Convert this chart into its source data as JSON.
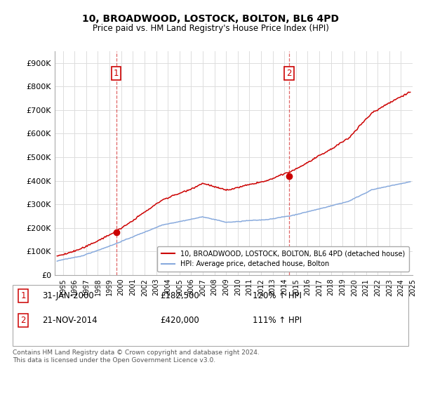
{
  "title": "10, BROADWOOD, LOSTOCK, BOLTON, BL6 4PD",
  "subtitle": "Price paid vs. HM Land Registry's House Price Index (HPI)",
  "ylabel_ticks": [
    "£0",
    "£100K",
    "£200K",
    "£300K",
    "£400K",
    "£500K",
    "£600K",
    "£700K",
    "£800K",
    "£900K"
  ],
  "ytick_values": [
    0,
    100000,
    200000,
    300000,
    400000,
    500000,
    600000,
    700000,
    800000,
    900000
  ],
  "ylim": [
    0,
    950000
  ],
  "xlim_start": 1994.8,
  "xlim_end": 2025.5,
  "sale1_x": 2000.08,
  "sale1_y": 182500,
  "sale2_x": 2014.9,
  "sale2_y": 420000,
  "sale_color": "#cc0000",
  "hpi_color": "#88aadd",
  "vline_color": "#cc0000",
  "grid_color": "#dddddd",
  "legend1_label": "10, BROADWOOD, LOSTOCK, BOLTON, BL6 4PD (detached house)",
  "legend2_label": "HPI: Average price, detached house, Bolton",
  "annotation1_num": "1",
  "annotation1_date": "31-JAN-2000",
  "annotation1_price": "£182,500",
  "annotation1_hpi": "120% ↑ HPI",
  "annotation2_num": "2",
  "annotation2_date": "21-NOV-2014",
  "annotation2_price": "£420,000",
  "annotation2_hpi": "111% ↑ HPI",
  "footnote": "Contains HM Land Registry data © Crown copyright and database right 2024.\nThis data is licensed under the Open Government Licence v3.0."
}
